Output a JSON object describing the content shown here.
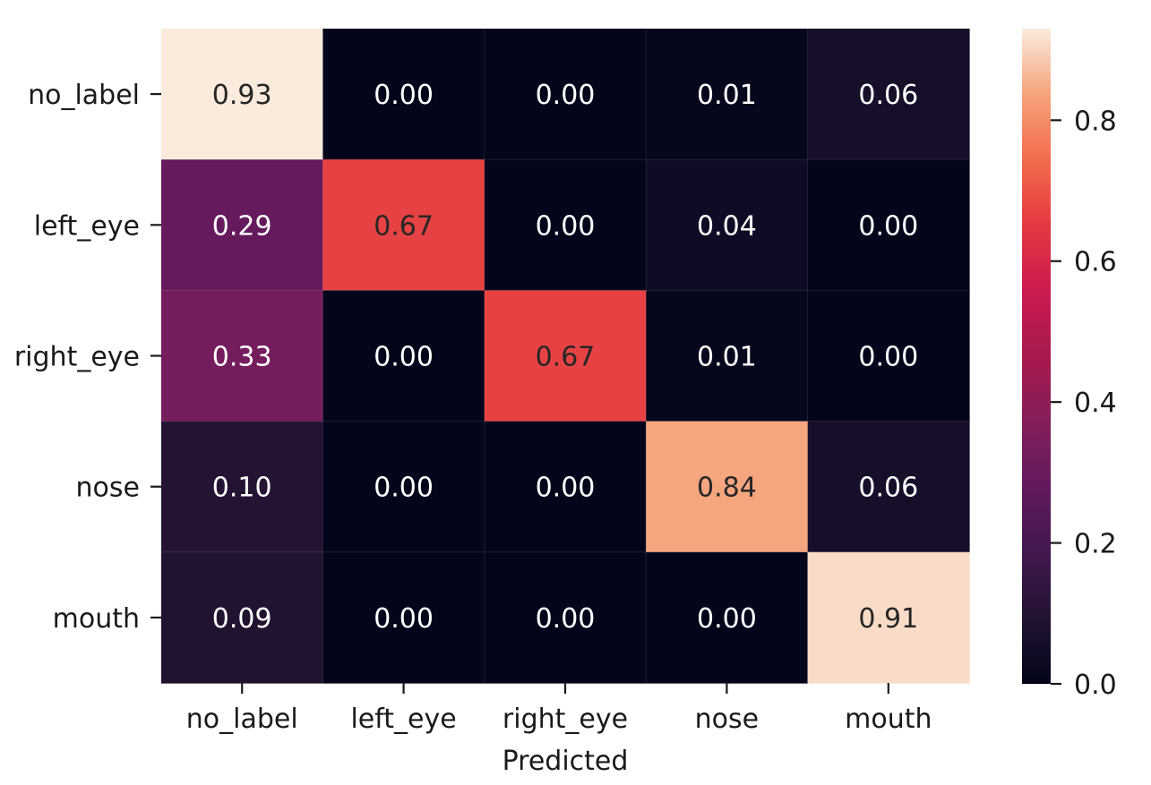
{
  "chart_data": {
    "type": "heatmap",
    "title": "",
    "xlabel": "Predicted",
    "ylabel": "",
    "x_categories": [
      "no_label",
      "left_eye",
      "right_eye",
      "nose",
      "mouth"
    ],
    "y_categories": [
      "no_label",
      "left_eye",
      "right_eye",
      "nose",
      "mouth"
    ],
    "values": [
      [
        0.93,
        0.0,
        0.0,
        0.01,
        0.06
      ],
      [
        0.29,
        0.67,
        0.0,
        0.04,
        0.0
      ],
      [
        0.33,
        0.0,
        0.67,
        0.01,
        0.0
      ],
      [
        0.1,
        0.0,
        0.0,
        0.84,
        0.06
      ],
      [
        0.09,
        0.0,
        0.0,
        0.0,
        0.91
      ]
    ],
    "annotation_format": "0.00",
    "colormap": "rocket",
    "vmin": 0.0,
    "vmax": 0.93,
    "colorbar": {
      "ticks": [
        0.0,
        0.2,
        0.4,
        0.6,
        0.8
      ],
      "tick_labels": [
        "0.0",
        "0.2",
        "0.4",
        "0.6",
        "0.8"
      ]
    },
    "grid": false,
    "legend": "colorbar-right"
  }
}
